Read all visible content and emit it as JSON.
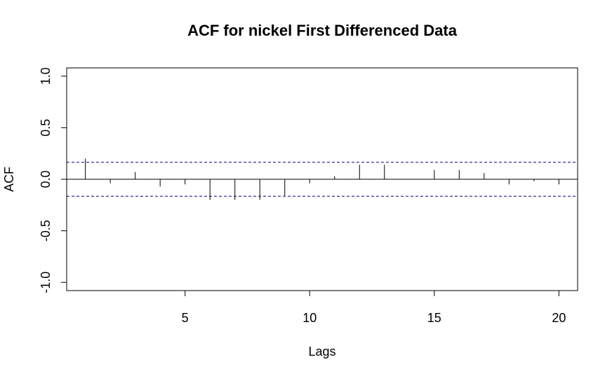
{
  "chart_data": {
    "type": "bar",
    "title": "ACF for nickel First Differenced Data",
    "xlabel": "Lags",
    "ylabel": "ACF",
    "xlim": [
      0.25,
      20.75
    ],
    "ylim": [
      -1.08,
      1.08
    ],
    "x_ticks": [
      5,
      10,
      15,
      20
    ],
    "y_ticks": [
      -1.0,
      -0.5,
      0.0,
      0.5,
      1.0
    ],
    "y_tick_labels": [
      "-1.0",
      "-0.5",
      "0.0",
      "0.5",
      "1.0"
    ],
    "lags": [
      1,
      2,
      3,
      4,
      5,
      6,
      7,
      8,
      9,
      10,
      11,
      12,
      13,
      14,
      15,
      16,
      17,
      18,
      19,
      20
    ],
    "values": [
      0.2,
      -0.04,
      0.07,
      -0.07,
      -0.05,
      -0.2,
      -0.2,
      -0.2,
      -0.16,
      -0.04,
      0.03,
      0.14,
      0.14,
      0.0,
      0.09,
      0.09,
      0.06,
      -0.05,
      -0.02,
      -0.05
    ],
    "confidence_bound": 0.165,
    "confidence_color": "#00008B",
    "grid": false
  }
}
